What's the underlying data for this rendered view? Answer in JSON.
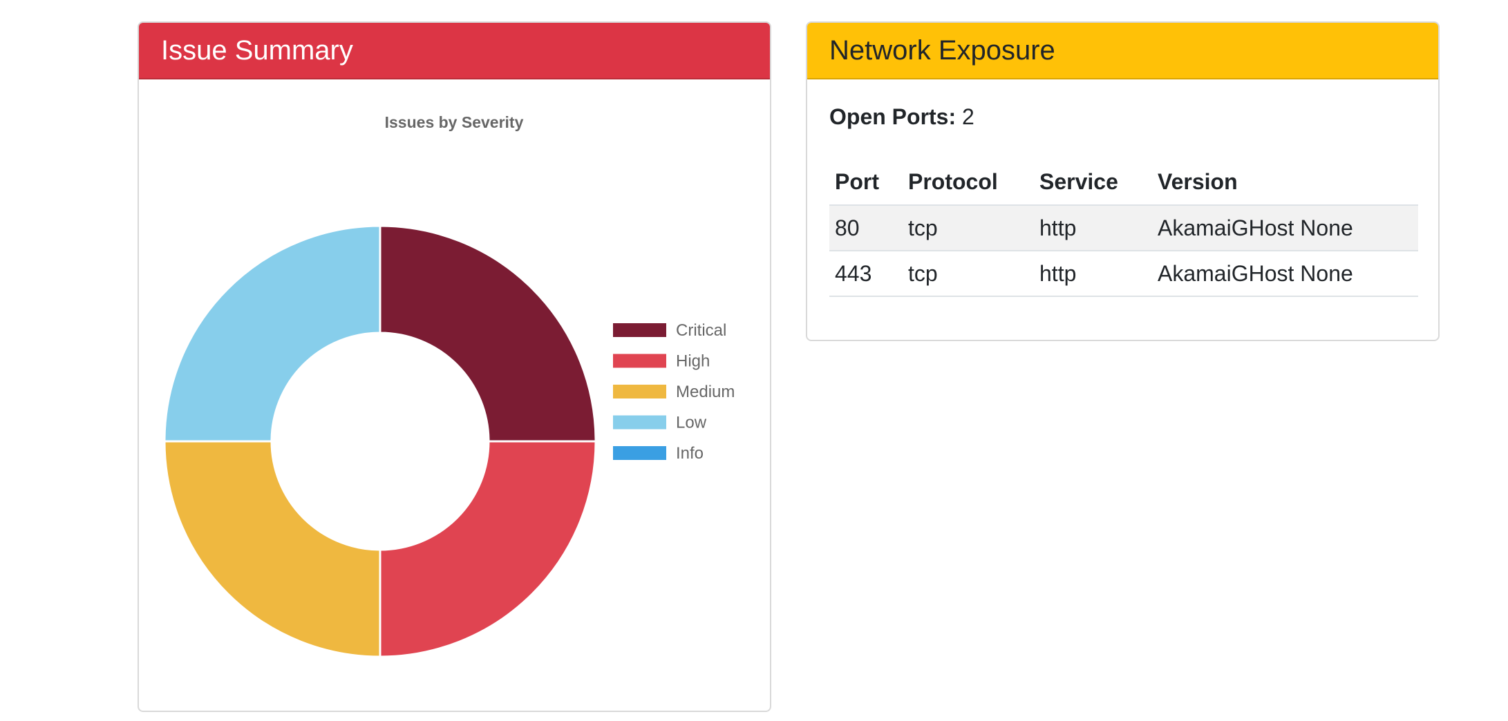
{
  "issue_summary": {
    "title": "Issue Summary"
  },
  "network_exposure": {
    "title": "Network Exposure",
    "open_ports_label": "Open Ports:",
    "open_ports_value": "2",
    "columns": [
      "Port",
      "Protocol",
      "Service",
      "Version"
    ],
    "rows": [
      [
        "80",
        "tcp",
        "http",
        "AkamaiGHost None"
      ],
      [
        "443",
        "tcp",
        "http",
        "AkamaiGHost None"
      ]
    ]
  },
  "colors": {
    "summary_header": "#dc3545",
    "network_header": "#ffc107"
  },
  "chart_data": {
    "type": "doughnut",
    "title": "Issues by Severity",
    "categories": [
      "Critical",
      "High",
      "Medium",
      "Low",
      "Info"
    ],
    "values": [
      1,
      1,
      1,
      1,
      0
    ],
    "colors": [
      "#7b1c33",
      "#e04451",
      "#efb840",
      "#87ceeb",
      "#3a9fe3"
    ],
    "legend_position": "right"
  }
}
